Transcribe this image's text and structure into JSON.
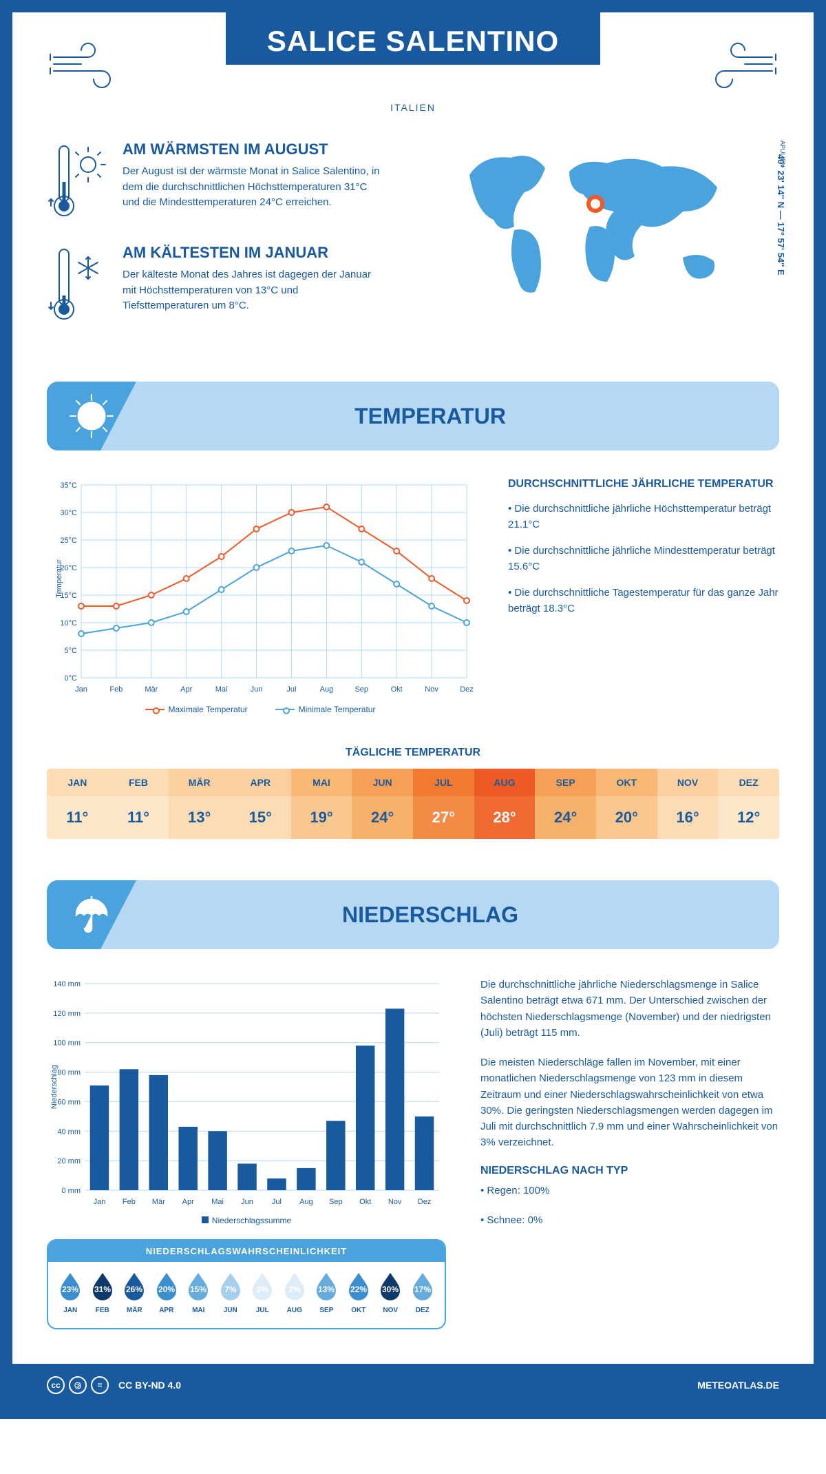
{
  "header": {
    "title": "SALICE SALENTINO",
    "country": "ITALIEN",
    "coordinates": "40° 23' 14'' N — 17° 57' 54'' E",
    "region": "APULIEN"
  },
  "facts": {
    "warm": {
      "title": "AM WÄRMSTEN IM AUGUST",
      "text": "Der August ist der wärmste Monat in Salice Salentino, in dem die durchschnittlichen Höchsttemperaturen 31°C und die Mindesttemperaturen 24°C erreichen."
    },
    "cold": {
      "title": "AM KÄLTESTEN IM JANUAR",
      "text": "Der kälteste Monat des Jahres ist dagegen der Januar mit Höchsttemperaturen von 13°C und Tiefsttemperaturen um 8°C."
    }
  },
  "temperature": {
    "section_title": "TEMPERATUR",
    "chart": {
      "type": "line",
      "months": [
        "Jan",
        "Feb",
        "Mär",
        "Apr",
        "Mai",
        "Jun",
        "Jul",
        "Aug",
        "Sep",
        "Okt",
        "Nov",
        "Dez"
      ],
      "max_series": {
        "label": "Maximale Temperatur",
        "color": "#f05a28",
        "values": [
          13,
          13,
          15,
          18,
          22,
          27,
          30,
          31,
          27,
          23,
          18,
          14
        ]
      },
      "min_series": {
        "label": "Minimale Temperatur",
        "color": "#4ba3dd",
        "values": [
          8,
          9,
          10,
          12,
          16,
          20,
          23,
          24,
          21,
          17,
          13,
          10
        ]
      },
      "ylabel": "Temperatur",
      "ylim": [
        0,
        35
      ],
      "ytick_step": 5,
      "grid_color": "#b5d9f5",
      "marker": "circle",
      "line_width": 2
    },
    "summary": {
      "title": "DURCHSCHNITTLICHE JÄHRLICHE TEMPERATUR",
      "bullets": [
        "• Die durchschnittliche jährliche Höchsttemperatur beträgt 21.1°C",
        "• Die durchschnittliche jährliche Mindesttemperatur beträgt 15.6°C",
        "• Die durchschnittliche Tagestemperatur für das ganze Jahr beträgt 18.3°C"
      ]
    },
    "daily_title": "TÄGLICHE TEMPERATUR",
    "daily_table": {
      "months": [
        "JAN",
        "FEB",
        "MÄR",
        "APR",
        "MAI",
        "JUN",
        "JUL",
        "AUG",
        "SEP",
        "OKT",
        "NOV",
        "DEZ"
      ],
      "values": [
        "11°",
        "11°",
        "13°",
        "15°",
        "19°",
        "24°",
        "27°",
        "28°",
        "24°",
        "20°",
        "16°",
        "12°"
      ],
      "head_colors": [
        "#fcdcb5",
        "#fcdcb5",
        "#fbd0a0",
        "#fbd0a0",
        "#f9b876",
        "#f6a057",
        "#f27a30",
        "#ee5a24",
        "#f6a057",
        "#f9b876",
        "#fbd0a0",
        "#fcdcb5"
      ],
      "val_colors": [
        "#fde7c9",
        "#fde7c9",
        "#fcdcb5",
        "#fcdcb5",
        "#fac88f",
        "#f8b16b",
        "#f48b44",
        "#f06a32",
        "#f8b16b",
        "#fac88f",
        "#fcdcb5",
        "#fde7c9"
      ],
      "text_color": "#195a9e",
      "hot_text_color": "#ffffff",
      "hot_threshold_idx": [
        6,
        7
      ]
    }
  },
  "precipitation": {
    "section_title": "NIEDERSCHLAG",
    "chart": {
      "type": "bar",
      "months": [
        "Jan",
        "Feb",
        "Mär",
        "Apr",
        "Mai",
        "Jun",
        "Jul",
        "Aug",
        "Sep",
        "Okt",
        "Nov",
        "Dez"
      ],
      "values": [
        71,
        82,
        78,
        43,
        40,
        18,
        8,
        15,
        47,
        98,
        123,
        50
      ],
      "bar_color": "#195a9e",
      "ylabel": "Niederschlag",
      "ylim": [
        0,
        140
      ],
      "ytick_step": 20,
      "grid_color": "#b5d9f5",
      "legend": "Niederschlagssumme"
    },
    "probability": {
      "title": "NIEDERSCHLAGSWAHRSCHEINLICHKEIT",
      "months": [
        "JAN",
        "FEB",
        "MÄR",
        "APR",
        "MAI",
        "JUN",
        "JUL",
        "AUG",
        "SEP",
        "OKT",
        "NOV",
        "DEZ"
      ],
      "values": [
        "23%",
        "31%",
        "26%",
        "20%",
        "15%",
        "7%",
        "3%",
        "2%",
        "13%",
        "22%",
        "30%",
        "17%"
      ],
      "colors": [
        "#3b8fce",
        "#0e3a6b",
        "#195a9e",
        "#3b8fce",
        "#66acdc",
        "#a6cfeb",
        "#dcecf8",
        "#dcecf8",
        "#66acdc",
        "#3b8fce",
        "#0e3a6b",
        "#66acdc"
      ],
      "pct_text_light": "#ffffff",
      "pct_text_dark": "#195a9e",
      "light_idx": [
        6,
        7
      ]
    },
    "text1": "Die durchschnittliche jährliche Niederschlagsmenge in Salice Salentino beträgt etwa 671 mm. Der Unterschied zwischen der höchsten Niederschlagsmenge (November) und der niedrigsten (Juli) beträgt 115 mm.",
    "text2": "Die meisten Niederschläge fallen im November, mit einer monatlichen Niederschlagsmenge von 123 mm in diesem Zeitraum und einer Niederschlagswahrscheinlichkeit von etwa 30%. Die geringsten Niederschlagsmengen werden dagegen im Juli mit durchschnittlich 7.9 mm und einer Wahrscheinlichkeit von 3% verzeichnet.",
    "by_type": {
      "title": "NIEDERSCHLAG NACH TYP",
      "items": [
        "• Regen: 100%",
        "• Schnee: 0%"
      ]
    }
  },
  "footer": {
    "license": "CC BY-ND 4.0",
    "site": "METEOATLAS.DE"
  },
  "colors": {
    "primary": "#195a9e",
    "light_blue": "#b5d9f5",
    "mid_blue": "#4ba3dd"
  }
}
